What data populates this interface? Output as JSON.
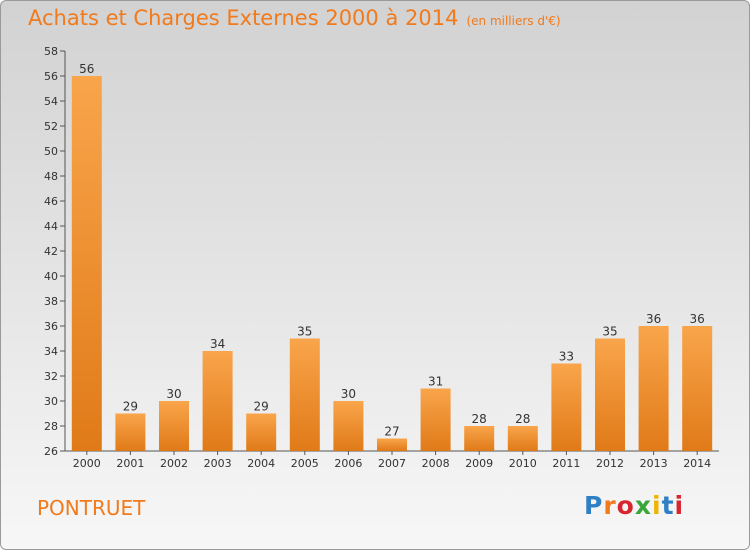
{
  "chart_data": {
    "type": "bar",
    "title": "Achats et Charges Externes 2000 à 2014",
    "unit_label": "(en milliers d'€)",
    "categories": [
      "2000",
      "2001",
      "2002",
      "2003",
      "2004",
      "2005",
      "2006",
      "2007",
      "2008",
      "2009",
      "2010",
      "2011",
      "2012",
      "2013",
      "2014"
    ],
    "values": [
      56,
      29,
      30,
      34,
      29,
      35,
      30,
      27,
      31,
      28,
      28,
      33,
      35,
      36,
      36
    ],
    "ylim": [
      26,
      58
    ],
    "yticks": [
      26,
      28,
      30,
      32,
      34,
      36,
      38,
      40,
      42,
      44,
      46,
      48,
      50,
      52,
      54,
      56,
      58
    ],
    "grid": false,
    "bar_color": "#f39a3d"
  },
  "footer": {
    "commune": "PONTRUET",
    "logo": "Proxiti"
  }
}
